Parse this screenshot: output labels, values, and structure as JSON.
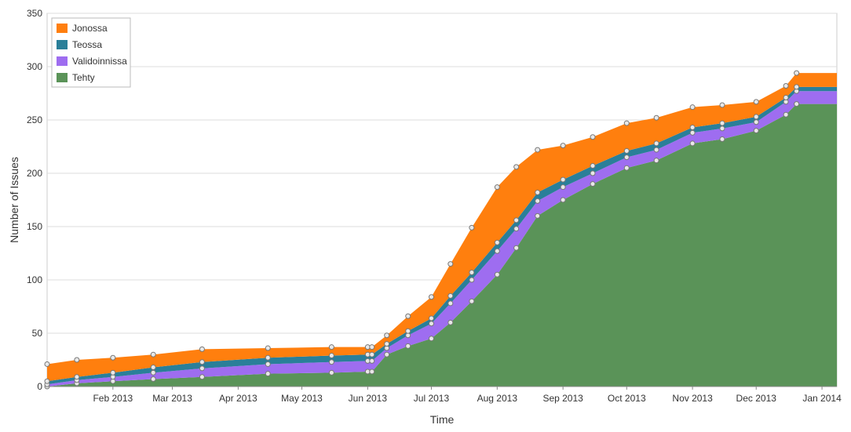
{
  "chart_data": {
    "type": "area",
    "stacked": true,
    "xlabel": "Time",
    "ylabel": "Number of Issues",
    "ylim": [
      0,
      350
    ],
    "yticks": [
      "0",
      "50",
      "100",
      "150",
      "200",
      "250",
      "300",
      "350"
    ],
    "xlim": [
      "2013-01-01",
      "2014-01-08"
    ],
    "xticks": [
      {
        "date": "2013-02-01",
        "label": "Feb 2013"
      },
      {
        "date": "2013-03-01",
        "label": "Mar 2013"
      },
      {
        "date": "2013-04-01",
        "label": "Apr 2013"
      },
      {
        "date": "2013-05-01",
        "label": "May 2013"
      },
      {
        "date": "2013-06-01",
        "label": "Jun 2013"
      },
      {
        "date": "2013-07-01",
        "label": "Jul 2013"
      },
      {
        "date": "2013-08-01",
        "label": "Aug 2013"
      },
      {
        "date": "2013-09-01",
        "label": "Sep 2013"
      },
      {
        "date": "2013-10-01",
        "label": "Oct 2013"
      },
      {
        "date": "2013-11-01",
        "label": "Nov 2013"
      },
      {
        "date": "2013-12-01",
        "label": "Dec 2013"
      },
      {
        "date": "2014-01-01",
        "label": "Jan 2014"
      }
    ],
    "grid": true,
    "legend_position": "top-left",
    "legend_order": [
      "Jonossa",
      "Teossa",
      "Validoinnissa",
      "Tehty"
    ],
    "x": [
      "2013-01-01",
      "2013-01-15",
      "2013-02-01",
      "2013-02-20",
      "2013-03-15",
      "2013-04-15",
      "2013-05-15",
      "2013-06-01",
      "2013-06-03",
      "2013-06-10",
      "2013-06-20",
      "2013-07-01",
      "2013-07-10",
      "2013-07-20",
      "2013-08-01",
      "2013-08-10",
      "2013-08-20",
      "2013-09-01",
      "2013-09-15",
      "2013-10-01",
      "2013-10-15",
      "2013-11-01",
      "2013-11-15",
      "2013-12-01",
      "2013-12-15",
      "2013-12-20",
      "2014-01-08"
    ],
    "series": [
      {
        "name": "Tehty",
        "color": "#5a9358",
        "values": [
          0,
          3,
          5,
          7,
          9,
          12,
          13,
          14,
          14,
          30,
          38,
          45,
          60,
          80,
          105,
          130,
          160,
          175,
          190,
          205,
          212,
          228,
          232,
          240,
          255,
          265,
          265
        ]
      },
      {
        "name": "Validoinnissa",
        "color": "#9e6df0",
        "values": [
          2,
          3,
          4,
          6,
          8,
          9,
          10,
          10,
          10,
          6,
          10,
          14,
          18,
          20,
          22,
          18,
          14,
          12,
          10,
          10,
          10,
          10,
          10,
          8,
          12,
          12,
          12
        ]
      },
      {
        "name": "Teossa",
        "color": "#2a7f99",
        "values": [
          3,
          3,
          4,
          5,
          6,
          6,
          6,
          6,
          6,
          4,
          4,
          5,
          7,
          7,
          8,
          8,
          8,
          7,
          7,
          6,
          6,
          5,
          5,
          5,
          4,
          4,
          4
        ]
      },
      {
        "name": "Jonossa",
        "color": "#ff7f0e",
        "values": [
          16,
          16,
          14,
          12,
          12,
          9,
          8,
          7,
          7,
          8,
          14,
          20,
          30,
          42,
          52,
          50,
          40,
          32,
          27,
          26,
          24,
          19,
          17,
          14,
          11,
          13,
          13
        ]
      }
    ]
  }
}
